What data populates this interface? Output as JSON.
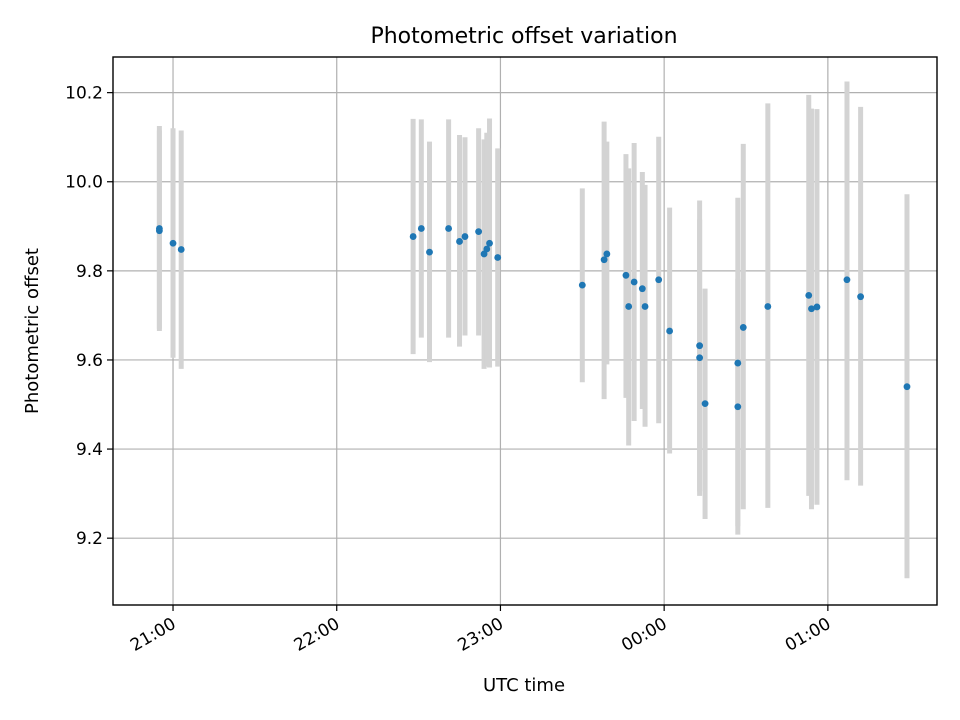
{
  "chart_data": {
    "type": "scatter",
    "title": "Photometric offset variation",
    "xlabel": "UTC time",
    "ylabel": "Photometric offset",
    "x_axis": {
      "kind": "time",
      "start": "20:38",
      "end": "01:40",
      "ticks": [
        "21:00",
        "22:00",
        "23:00",
        "00:00",
        "01:00"
      ]
    },
    "ylim": [
      9.05,
      10.28
    ],
    "yticks": [
      9.2,
      9.4,
      9.6,
      9.8,
      10.0,
      10.2
    ],
    "y_tick_labels": [
      "9.2",
      "9.4",
      "9.6",
      "9.8",
      "10.0",
      "10.2"
    ],
    "grid": true,
    "colors": {
      "point": "#1f77b4",
      "errorbar": "#d3d3d3"
    },
    "points": [
      {
        "t": "20:55",
        "y": 9.89,
        "lo": 9.665,
        "hi": 10.115
      },
      {
        "t": "20:55",
        "y": 9.895,
        "lo": 9.67,
        "hi": 10.125
      },
      {
        "t": "21:00",
        "y": 9.862,
        "lo": 9.605,
        "hi": 10.12
      },
      {
        "t": "21:03",
        "y": 9.848,
        "lo": 9.58,
        "hi": 10.115
      },
      {
        "t": "22:28",
        "y": 9.877,
        "lo": 9.613,
        "hi": 10.141
      },
      {
        "t": "22:31",
        "y": 9.895,
        "lo": 9.65,
        "hi": 10.14
      },
      {
        "t": "22:34",
        "y": 9.842,
        "lo": 9.595,
        "hi": 10.09
      },
      {
        "t": "22:41",
        "y": 9.895,
        "lo": 9.65,
        "hi": 10.14
      },
      {
        "t": "22:45",
        "y": 9.866,
        "lo": 9.63,
        "hi": 10.105
      },
      {
        "t": "22:47",
        "y": 9.877,
        "lo": 9.655,
        "hi": 10.1
      },
      {
        "t": "22:52",
        "y": 9.888,
        "lo": 9.655,
        "hi": 10.12
      },
      {
        "t": "22:54",
        "y": 9.838,
        "lo": 9.58,
        "hi": 10.095
      },
      {
        "t": "22:55",
        "y": 9.849,
        "lo": 9.585,
        "hi": 10.11
      },
      {
        "t": "22:56",
        "y": 9.862,
        "lo": 9.583,
        "hi": 10.142
      },
      {
        "t": "22:59",
        "y": 9.83,
        "lo": 9.585,
        "hi": 10.075
      },
      {
        "t": "23:30",
        "y": 9.768,
        "lo": 9.55,
        "hi": 9.985
      },
      {
        "t": "23:38",
        "y": 9.825,
        "lo": 9.512,
        "hi": 10.135
      },
      {
        "t": "23:39",
        "y": 9.838,
        "lo": 9.59,
        "hi": 10.09
      },
      {
        "t": "23:46",
        "y": 9.79,
        "lo": 9.515,
        "hi": 10.062
      },
      {
        "t": "23:47",
        "y": 9.72,
        "lo": 9.408,
        "hi": 10.03
      },
      {
        "t": "23:49",
        "y": 9.775,
        "lo": 9.463,
        "hi": 10.087
      },
      {
        "t": "23:52",
        "y": 9.76,
        "lo": 9.49,
        "hi": 10.022
      },
      {
        "t": "23:53",
        "y": 9.72,
        "lo": 9.45,
        "hi": 9.993
      },
      {
        "t": "23:58",
        "y": 9.78,
        "lo": 9.458,
        "hi": 10.101
      },
      {
        "t": "00:02",
        "y": 9.665,
        "lo": 9.39,
        "hi": 9.942
      },
      {
        "t": "00:13",
        "y": 9.632,
        "lo": 9.305,
        "hi": 9.958
      },
      {
        "t": "00:13",
        "y": 9.605,
        "lo": 9.295,
        "hi": 9.915
      },
      {
        "t": "00:15",
        "y": 9.502,
        "lo": 9.243,
        "hi": 9.76
      },
      {
        "t": "00:27",
        "y": 9.593,
        "lo": 9.227,
        "hi": 9.964
      },
      {
        "t": "00:27",
        "y": 9.495,
        "lo": 9.208,
        "hi": 9.782
      },
      {
        "t": "00:29",
        "y": 9.673,
        "lo": 9.265,
        "hi": 10.085
      },
      {
        "t": "00:38",
        "y": 9.72,
        "lo": 9.268,
        "hi": 10.176
      },
      {
        "t": "00:53",
        "y": 9.745,
        "lo": 9.295,
        "hi": 10.195
      },
      {
        "t": "00:54",
        "y": 9.715,
        "lo": 9.265,
        "hi": 10.164
      },
      {
        "t": "00:56",
        "y": 9.719,
        "lo": 9.275,
        "hi": 10.163
      },
      {
        "t": "01:07",
        "y": 9.78,
        "lo": 9.33,
        "hi": 10.225
      },
      {
        "t": "01:12",
        "y": 9.742,
        "lo": 9.318,
        "hi": 10.168
      },
      {
        "t": "01:29",
        "y": 9.54,
        "lo": 9.11,
        "hi": 9.972
      }
    ]
  }
}
